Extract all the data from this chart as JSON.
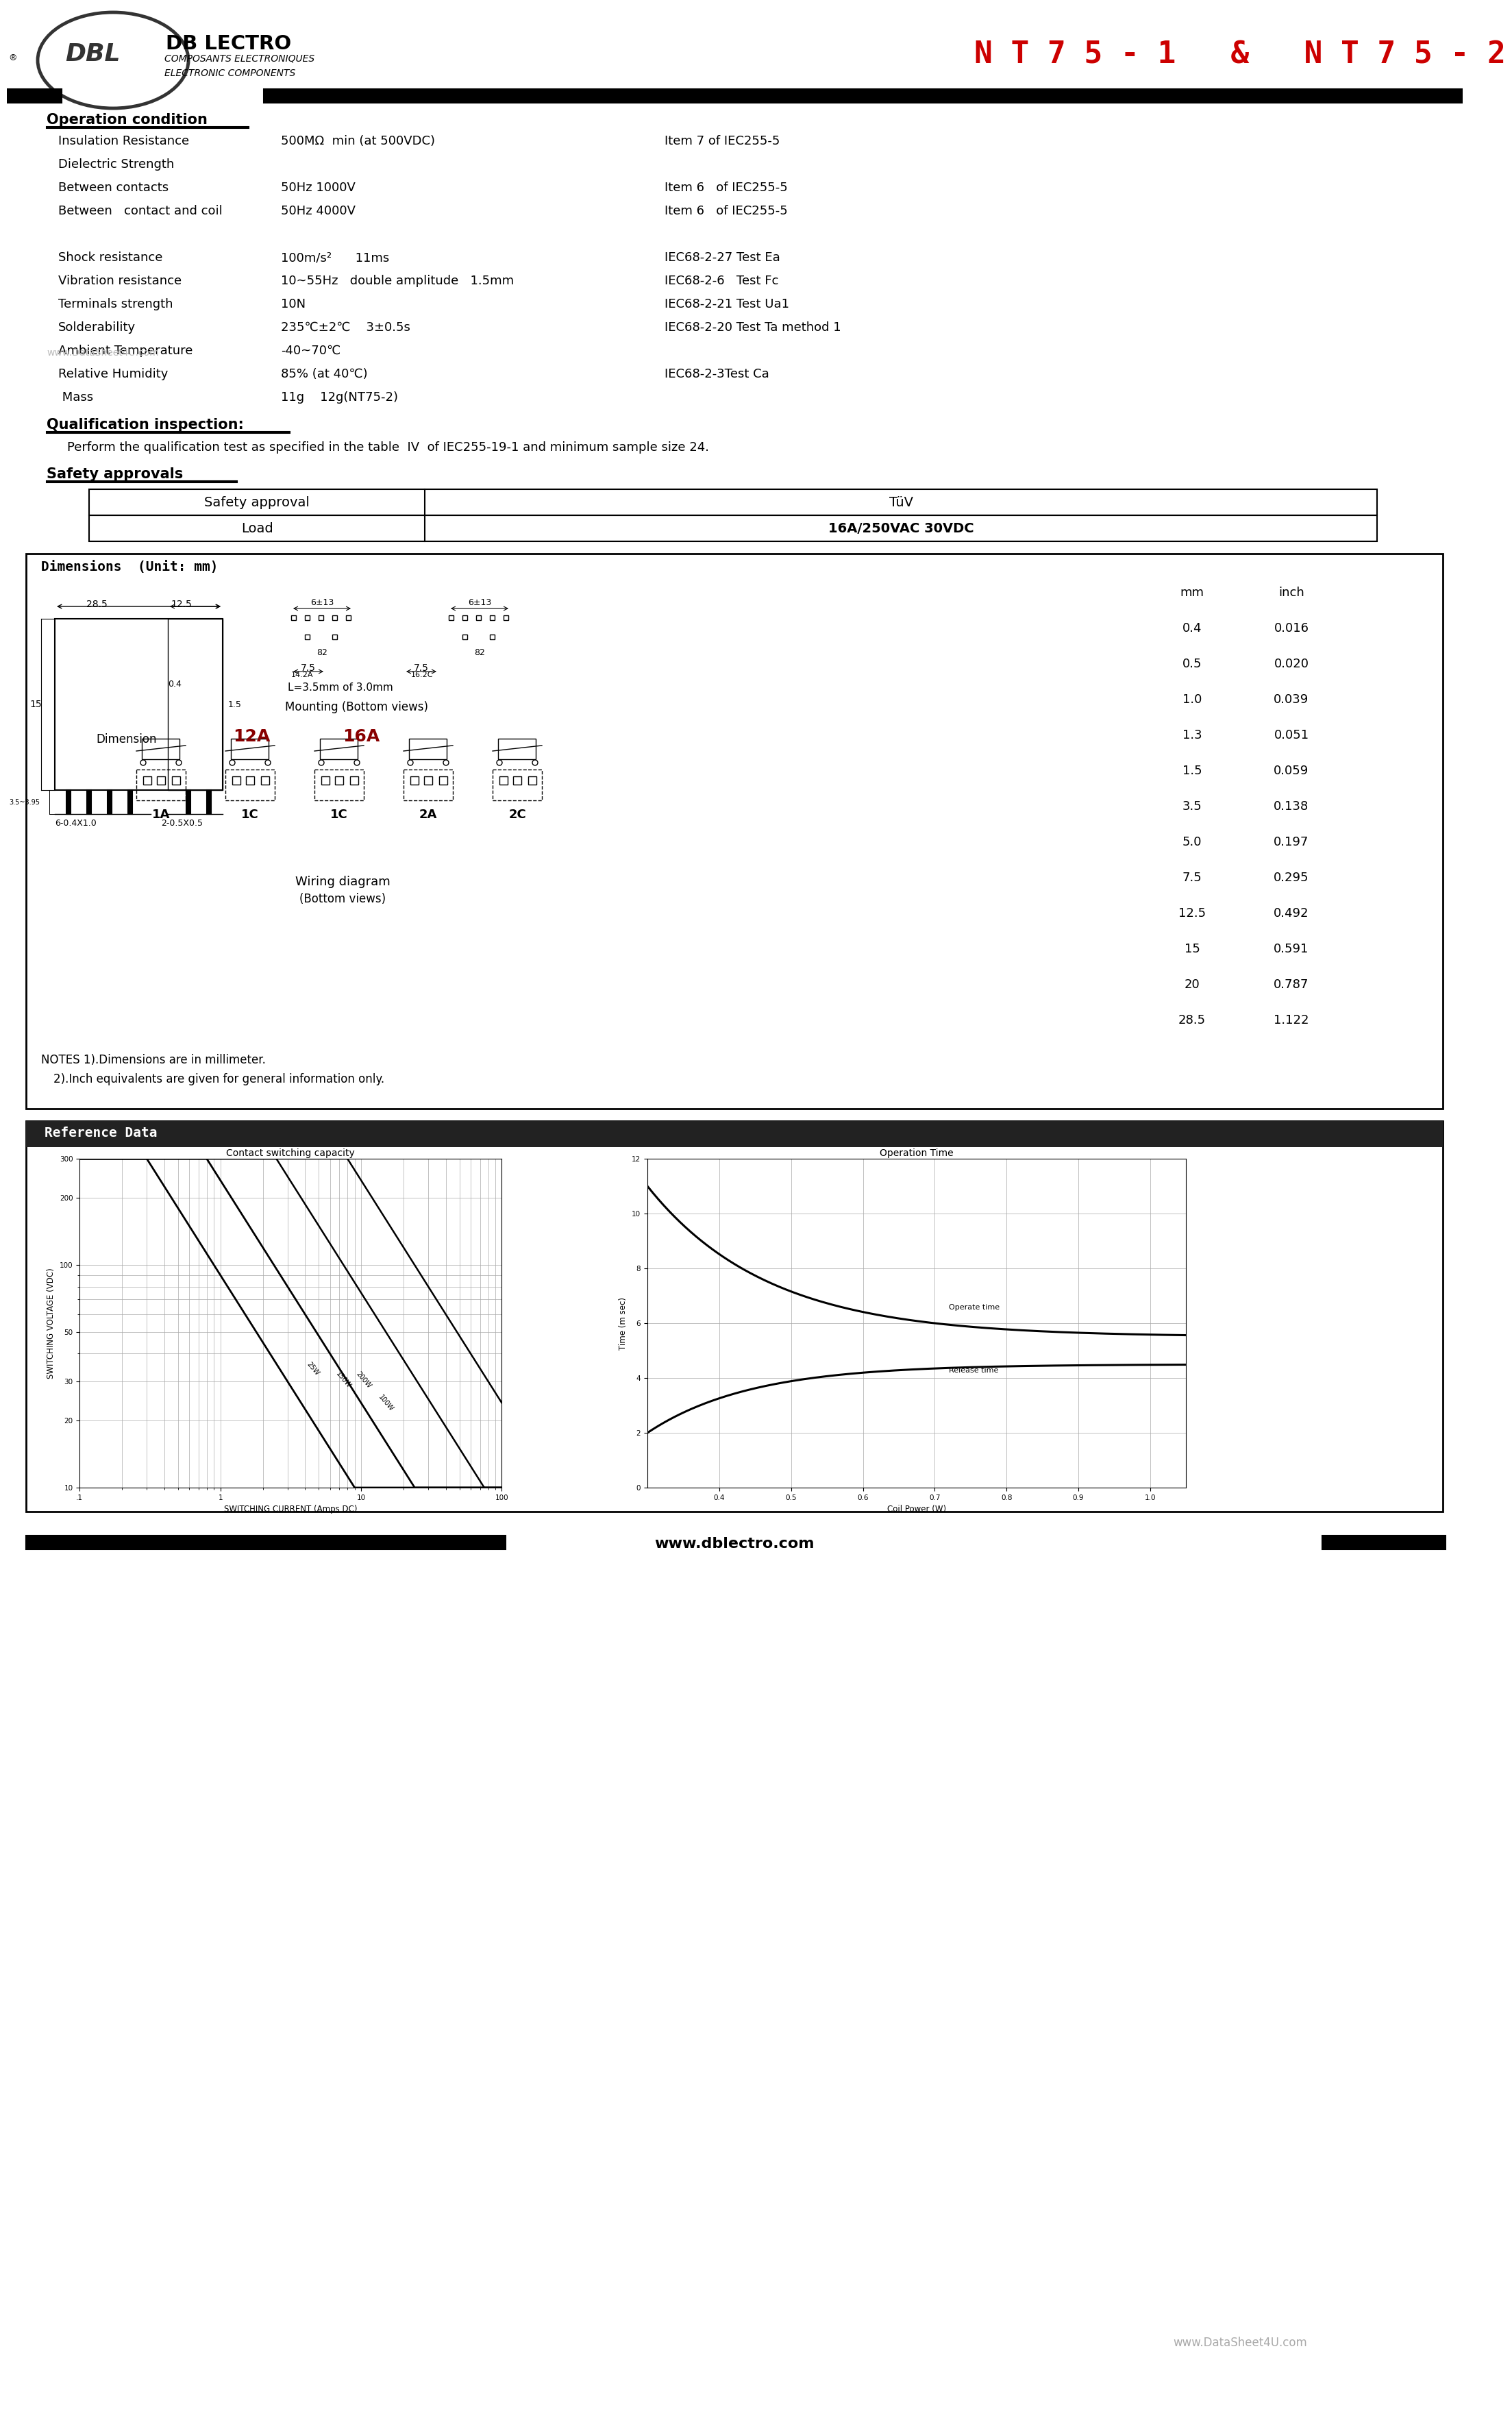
{
  "title_red": "N T 7 5 - 1   &   N T 7 5 - 2",
  "bg_color": "#ffffff",
  "red_color": "#cc0000",
  "operation_condition_rows": [
    [
      "Insulation Resistance",
      "500MΩ  min (at 500VDC)",
      "Item 7 of IEC255-5"
    ],
    [
      "Dielectric Strength",
      "",
      ""
    ],
    [
      "Between contacts",
      "50Hz 1000V",
      "Item 6   of IEC255-5"
    ],
    [
      "Between   contact and coil",
      "50Hz 4000V",
      "Item 6   of IEC255-5"
    ],
    [
      "",
      "",
      ""
    ],
    [
      "Shock resistance",
      "100m/s²      11ms",
      "IEC68-2-27 Test Ea"
    ],
    [
      "Vibration resistance",
      "10~55Hz   double amplitude   1.5mm",
      "IEC68-2-6   Test Fc"
    ],
    [
      "Terminals strength",
      "10N",
      "IEC68-2-21 Test Ua1"
    ],
    [
      "Solderability",
      "235℃±2℃    3±0.5s",
      "IEC68-2-20 Test Ta method 1"
    ],
    [
      "Ambient Temperature",
      "-40~70℃",
      ""
    ],
    [
      "Relative Humidity",
      "85% (at 40℃)",
      "IEC68-2-3Test Ca"
    ],
    [
      " Mass",
      "11g    12g(NT75-2)",
      ""
    ]
  ],
  "qualification_text": "Perform the qualification test as specified in the table  IV  of IEC255-19-1 and minimum sample size 24.",
  "safety_table": [
    [
      "Safety approval",
      "TüV"
    ],
    [
      "Load",
      "16A/250VAC 30VDC"
    ]
  ],
  "mm_inch_table": [
    [
      "0.4",
      "0.016"
    ],
    [
      "0.5",
      "0.020"
    ],
    [
      "1.0",
      "0.039"
    ],
    [
      "1.3",
      "0.051"
    ],
    [
      "1.5",
      "0.059"
    ],
    [
      "3.5",
      "0.138"
    ],
    [
      "5.0",
      "0.197"
    ],
    [
      "7.5",
      "0.295"
    ],
    [
      "12.5",
      "0.492"
    ],
    [
      "15",
      "0.591"
    ],
    [
      "20",
      "0.787"
    ],
    [
      "28.5",
      "1.122"
    ]
  ],
  "footer_url": "www.dblectro.com",
  "watermark_bottom": "www.DataSheet4U.com",
  "watermark_top": "www.DataSheet4U.com"
}
